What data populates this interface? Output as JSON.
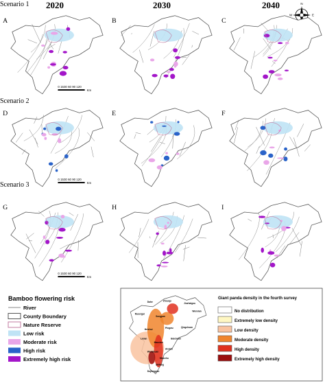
{
  "headers": [
    "2020",
    "2030",
    "2040"
  ],
  "scenarios": [
    "Scenario 1",
    "Scenario 2",
    "Scenario 3"
  ],
  "panels": [
    "A",
    "B",
    "C",
    "D",
    "E",
    "F",
    "G",
    "H",
    "I"
  ],
  "scale": {
    "labels": "0 1530 60 90 120",
    "unit": "Km"
  },
  "compass": {
    "n": "N",
    "e": "E",
    "s": "S",
    "w": "W"
  },
  "risk_legend": {
    "title": "Bamboo flowering risk",
    "items": [
      {
        "label": "River",
        "color": "#888888"
      },
      {
        "label": "County Boundary",
        "color": "#555555"
      },
      {
        "label": "Nature Reserve",
        "color": "#c27ba0"
      },
      {
        "label": "Low risk",
        "color": "#bfe3f5"
      },
      {
        "label": "Moderate risk",
        "color": "#e9a6e8"
      },
      {
        "label": "High risk",
        "color": "#2a63c9"
      },
      {
        "label": "Extremely high risk",
        "color": "#a316c9"
      }
    ]
  },
  "inset": {
    "places": [
      "Dahe",
      "Zhouqu",
      "Ruoergai",
      "Jiuzhaigou",
      "Wenxian",
      "Songpan",
      "Pingwu",
      "Qingchuan",
      "Heishui",
      "Maoxian",
      "Beichuan",
      "Lixian",
      "Wenchuan",
      "Anxian",
      "Mianzhu",
      "Shifang",
      "Dujiangyan"
    ],
    "legend": {
      "title": "Giant panda density in the fourth survey",
      "items": [
        {
          "label": "No distribution",
          "color": "#ffffff"
        },
        {
          "label": "Extremely low density",
          "color": "#fff7c2"
        },
        {
          "label": "Low density",
          "color": "#f9c3a0"
        },
        {
          "label": "Moderate density",
          "color": "#f0852d"
        },
        {
          "label": "High density",
          "color": "#e0301e"
        },
        {
          "label": "Extremely high density",
          "color": "#9b0d0d"
        }
      ]
    }
  }
}
